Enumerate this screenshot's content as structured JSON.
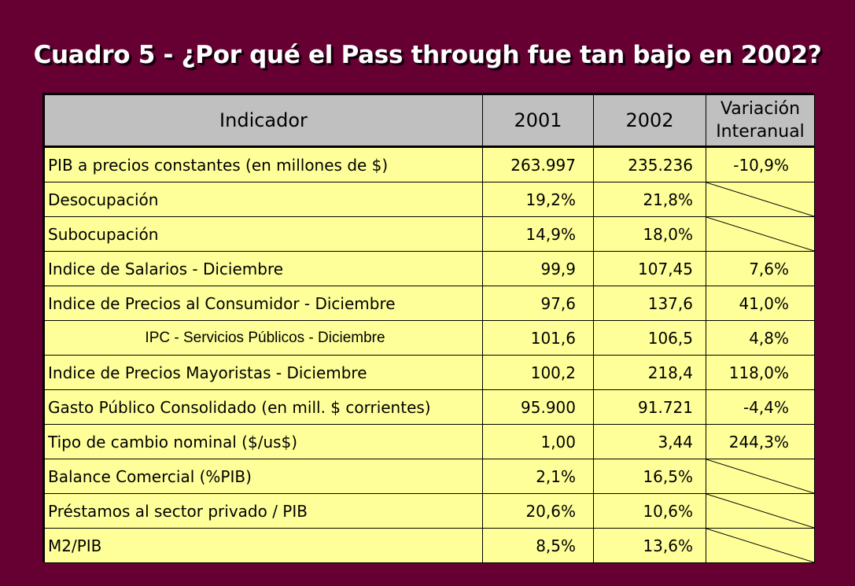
{
  "title": "Cuadro 5 - ¿Por qué el Pass through fue tan bajo en 2002?",
  "table": {
    "headers": {
      "indicador": "Indicador",
      "y2001": "2001",
      "y2002": "2002",
      "variacion_line1": "Variación",
      "variacion_line2": "Interanual"
    },
    "rows": [
      {
        "indicador": "PIB a precios constantes (en millones de $)",
        "y2001": "263.997",
        "y2002": "235.236",
        "variacion": "-10,9%"
      },
      {
        "indicador": "Desocupación",
        "y2001": "19,2%",
        "y2002": "21,8%",
        "variacion": ""
      },
      {
        "indicador": "Subocupación",
        "y2001": "14,9%",
        "y2002": "18,0%",
        "variacion": ""
      },
      {
        "indicador": "Indice de Salarios - Diciembre",
        "y2001": "99,9",
        "y2002": "107,45",
        "variacion": "7,6%"
      },
      {
        "indicador": "Indice de Precios al Consumidor - Diciembre",
        "y2001": "97,6",
        "y2002": "137,6",
        "variacion": "41,0%"
      },
      {
        "indicador": "IPC - Servicios Públicos - Diciembre",
        "y2001": "101,6",
        "y2002": "106,5",
        "variacion": "4,8%"
      },
      {
        "indicador": "Indice de Precios Mayoristas - Diciembre",
        "y2001": "100,2",
        "y2002": "218,4",
        "variacion": "118,0%"
      },
      {
        "indicador": "Gasto Público Consolidado (en mill. $ corrientes)",
        "y2001": "95.900",
        "y2002": "91.721",
        "variacion": "-4,4%"
      },
      {
        "indicador": "Tipo de cambio nominal ($/us$)",
        "y2001": "1,00",
        "y2002": "3,44",
        "variacion": "244,3%"
      },
      {
        "indicador": "Balance Comercial (%PIB)",
        "y2001": "2,1%",
        "y2002": "16,5%",
        "variacion": ""
      },
      {
        "indicador": "Préstamos al sector privado / PIB",
        "y2001": "20,6%",
        "y2002": "10,6%",
        "variacion": ""
      },
      {
        "indicador": "M2/PIB",
        "y2001": "8,5%",
        "y2002": "13,6%",
        "variacion": ""
      }
    ]
  },
  "colors": {
    "background": "#660033",
    "table_fill": "#ffff99",
    "header_fill": "#c0c0c0"
  }
}
